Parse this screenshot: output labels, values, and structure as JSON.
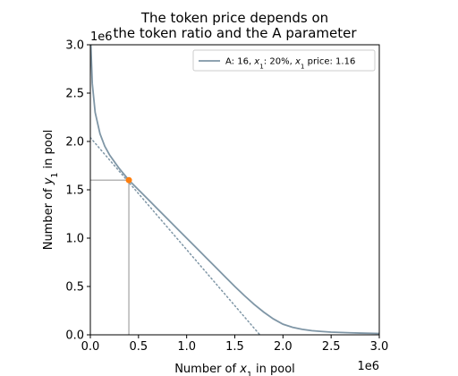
{
  "chart_data": {
    "type": "line",
    "title_lines": [
      "The token price depends on",
      "the token ratio and the A parameter"
    ],
    "xlabel_parts": [
      "Number of ",
      "x",
      "1",
      " in pool"
    ],
    "ylabel_parts": [
      "Number of ",
      "y",
      "1",
      " in pool"
    ],
    "x_offset_label": "1e6",
    "y_offset_label": "1e6",
    "xlim": [
      0,
      3.0
    ],
    "ylim": [
      0,
      3.0
    ],
    "x_ticks": [
      0.0,
      0.5,
      1.0,
      1.5,
      2.0,
      2.5,
      3.0
    ],
    "x_tick_labels": [
      "0.0",
      "0.5",
      "1.0",
      "1.5",
      "2.0",
      "2.5",
      "3.0"
    ],
    "y_ticks": [
      0.0,
      0.5,
      1.0,
      1.5,
      2.0,
      2.5,
      3.0
    ],
    "y_tick_labels": [
      "0.0",
      "0.5",
      "1.0",
      "1.5",
      "2.0",
      "2.5",
      "3.0"
    ],
    "grid": false,
    "legend_position": "top-right",
    "colors": {
      "curve": "#7f96a6",
      "point": "#ff7f0e",
      "guide": "#b5b5b5",
      "tangent": "#7f96a6"
    },
    "series": [
      {
        "name_parts": [
          "A: 16, ",
          "x",
          "1",
          ": 20%, ",
          "x",
          "1",
          " price: 1.16"
        ],
        "x": [
          0.005,
          0.02,
          0.05,
          0.1,
          0.15,
          0.2,
          0.3,
          0.4,
          0.5,
          0.6,
          0.7,
          0.8,
          0.9,
          1.0,
          1.1,
          1.2,
          1.3,
          1.4,
          1.5,
          1.6,
          1.7,
          1.8,
          1.9,
          2.0,
          2.1,
          2.2,
          2.3,
          2.4,
          2.5,
          2.6,
          2.7,
          2.8,
          2.9,
          3.0
        ],
        "y": [
          3.0,
          2.6,
          2.3,
          2.08,
          1.95,
          1.86,
          1.72,
          1.6,
          1.5,
          1.4,
          1.3,
          1.2,
          1.1,
          1.0,
          0.9,
          0.8,
          0.7,
          0.6,
          0.5,
          0.405,
          0.315,
          0.235,
          0.165,
          0.11,
          0.078,
          0.057,
          0.043,
          0.035,
          0.028,
          0.024,
          0.021,
          0.018,
          0.016,
          0.014
        ]
      }
    ],
    "highlight_point": {
      "x": 0.4,
      "y": 1.6
    },
    "tangent_line": {
      "x": [
        0.0,
        1.76
      ],
      "y": [
        2.04,
        0.0
      ]
    }
  }
}
